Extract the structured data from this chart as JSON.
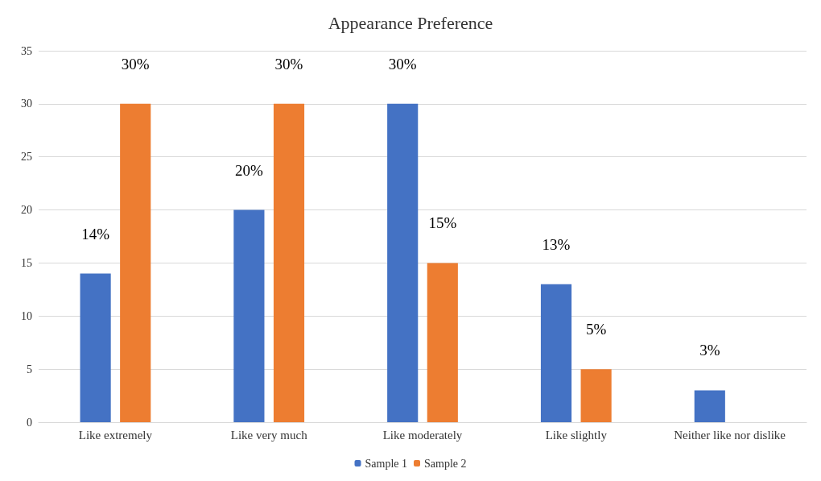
{
  "chart_data": {
    "type": "bar",
    "title": "Appearance Preference",
    "categories": [
      "Like extremely",
      "Like very much",
      "Like moderately",
      "Like slightly",
      "Neither like nor dislike"
    ],
    "series": [
      {
        "name": "Sample 1",
        "color": "#4472c4",
        "values": [
          14,
          20,
          30,
          13,
          3
        ],
        "value_labels": [
          "14%",
          "20%",
          "30%",
          "13%",
          "3%"
        ]
      },
      {
        "name": "Sample 2",
        "color": "#ed7d31",
        "values": [
          30,
          30,
          15,
          5,
          null
        ],
        "value_labels": [
          "30%",
          "30%",
          "15%",
          "5%",
          null
        ]
      }
    ],
    "ylim": [
      0,
      35
    ],
    "yticks": [
      0,
      5,
      10,
      15,
      20,
      25,
      30,
      35
    ],
    "grid": "y",
    "legend": "bottom"
  }
}
